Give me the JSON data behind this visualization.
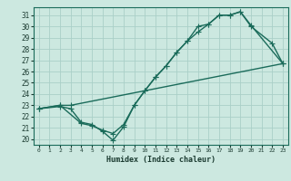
{
  "xlabel": "Humidex (Indice chaleur)",
  "ylabel": "",
  "bg_color": "#cce8e0",
  "line_color": "#1a6b5a",
  "grid_color": "#aacfc8",
  "xlim": [
    -0.5,
    23.5
  ],
  "ylim": [
    19.5,
    31.7
  ],
  "xticks": [
    0,
    1,
    2,
    3,
    4,
    5,
    6,
    7,
    8,
    9,
    10,
    11,
    12,
    13,
    14,
    15,
    16,
    17,
    18,
    19,
    20,
    21,
    22,
    23
  ],
  "yticks": [
    20,
    21,
    22,
    23,
    24,
    25,
    26,
    27,
    28,
    29,
    30,
    31
  ],
  "line1_x": [
    0,
    2,
    3,
    23
  ],
  "line1_y": [
    22.7,
    23.0,
    23.0,
    26.7
  ],
  "line2_x": [
    0,
    2,
    3,
    4,
    5,
    6,
    7,
    8,
    9,
    10,
    11,
    12,
    13,
    14,
    15,
    16,
    17,
    18,
    19,
    20,
    22,
    23
  ],
  "line2_y": [
    22.7,
    22.9,
    22.7,
    21.5,
    21.3,
    20.7,
    19.9,
    21.1,
    23.0,
    24.3,
    25.5,
    26.5,
    27.7,
    28.7,
    30.0,
    30.2,
    31.0,
    31.0,
    31.3,
    30.0,
    28.5,
    26.7
  ],
  "line3_x": [
    0,
    2,
    4,
    5,
    6,
    7,
    8,
    9,
    10,
    11,
    12,
    13,
    14,
    15,
    16,
    17,
    18,
    19,
    20,
    23
  ],
  "line3_y": [
    22.7,
    23.0,
    21.4,
    21.2,
    20.8,
    20.5,
    21.3,
    23.0,
    24.3,
    25.5,
    26.5,
    27.7,
    28.7,
    29.5,
    30.2,
    31.0,
    31.0,
    31.3,
    30.1,
    26.7
  ],
  "marker": "+",
  "markersize": 4,
  "linewidth": 1.0
}
